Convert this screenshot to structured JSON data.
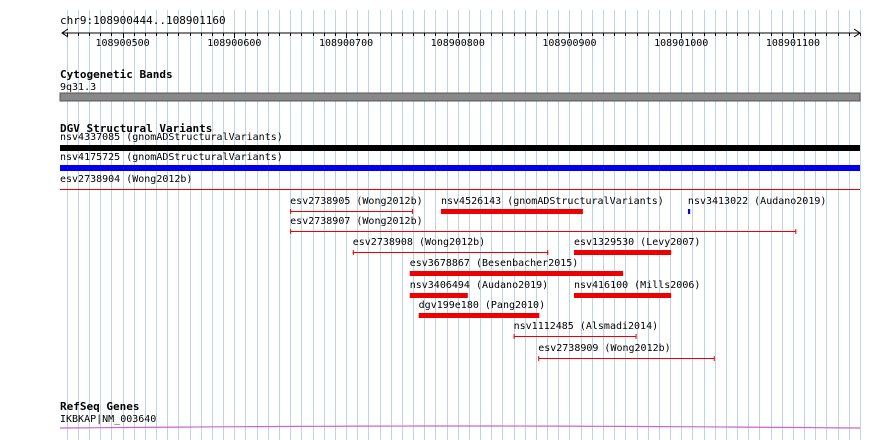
{
  "region": {
    "label": "chr9:108900444..108901160",
    "start": 108900444,
    "end": 108901160,
    "ticks": [
      {
        "pos": 108900500,
        "label": "108900500"
      },
      {
        "pos": 108900600,
        "label": "108900600"
      },
      {
        "pos": 108900700,
        "label": "108900700"
      },
      {
        "pos": 108900800,
        "label": "108900800"
      },
      {
        "pos": 108900900,
        "label": "108900900"
      },
      {
        "pos": 108901000,
        "label": "108901000"
      },
      {
        "pos": 108901100,
        "label": "108901100"
      }
    ]
  },
  "colors": {
    "grid": "#bcd3e8",
    "cyto_band": "#888888",
    "black": "#000000",
    "blue": "#0000ee",
    "red": "#ee0000",
    "refseq": "#cc66cc",
    "text": "#000000"
  },
  "tracks": {
    "cytoband": {
      "title": "Cytogenetic Bands",
      "band_label": "9q31.3"
    },
    "dgv": {
      "title": "DGV Structural Variants",
      "features": [
        {
          "name": "nsv4337085",
          "source": "(gnomADStructuralVariants)",
          "start": 108900444,
          "end": 108901160,
          "style": "thick",
          "color": "black",
          "row": 0
        },
        {
          "name": "nsv4175725",
          "source": "(gnomADStructuralVariants)",
          "start": 108900444,
          "end": 108901160,
          "style": "thick",
          "color": "blue",
          "row": 1
        },
        {
          "name": "esv2738904",
          "source": "(Wong2012b)",
          "start": 108900444,
          "end": 108901160,
          "style": "thin",
          "color": "red",
          "row": 2
        },
        {
          "name": "esv2738905",
          "source": "(Wong2012b)",
          "start": 108900650,
          "end": 108900760,
          "style": "thin",
          "color": "red",
          "row": 3
        },
        {
          "name": "nsv4526143",
          "source": "(gnomADStructuralVariants)",
          "start": 108900785,
          "end": 108900912,
          "style": "thick",
          "color": "red",
          "row": 3
        },
        {
          "name": "nsv3413022",
          "source": "(Audano2019)",
          "start": 108901006,
          "end": 108901008,
          "style": "thick",
          "color": "blue",
          "row": 3
        },
        {
          "name": "esv2738907",
          "source": "(Wong2012b)",
          "start": 108900650,
          "end": 108901103,
          "style": "thin",
          "color": "red",
          "row": 4
        },
        {
          "name": "esv2738908",
          "source": "(Wong2012b)",
          "start": 108900706,
          "end": 108900881,
          "style": "thin",
          "color": "red",
          "row": 5
        },
        {
          "name": "esv1329530",
          "source": "(Levy2007)",
          "start": 108900904,
          "end": 108900991,
          "style": "thick",
          "color": "red",
          "row": 5
        },
        {
          "name": "esv3678867",
          "source": "(Besenbacher2015)",
          "start": 108900757,
          "end": 108900948,
          "style": "thick",
          "color": "red",
          "row": 6
        },
        {
          "name": "nsv3406494",
          "source": "(Audano2019)",
          "start": 108900757,
          "end": 108900809,
          "style": "thick",
          "color": "red",
          "row": 7
        },
        {
          "name": "nsv416100",
          "source": "(Mills2006)",
          "start": 108900904,
          "end": 108900991,
          "style": "thick",
          "color": "red",
          "row": 7
        },
        {
          "name": "dgv199e180",
          "source": "(Pang2010)",
          "start": 108900765,
          "end": 108900873,
          "style": "thick",
          "color": "red",
          "row": 8
        },
        {
          "name": "nsv1112485",
          "source": "(Alsmadi2014)",
          "start": 108900850,
          "end": 108900960,
          "style": "thin",
          "color": "red",
          "row": 9
        },
        {
          "name": "esv2738909",
          "source": "(Wong2012b)",
          "start": 108900872,
          "end": 108901030,
          "style": "thin",
          "color": "red",
          "row": 10
        }
      ]
    },
    "refseq": {
      "title": "RefSeq Genes",
      "gene_label": "IKBKAP|NM_003640"
    }
  }
}
